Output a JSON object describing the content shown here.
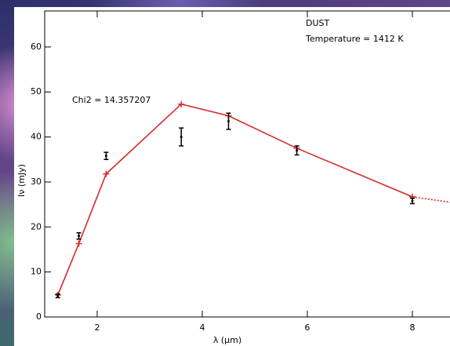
{
  "chart_data": {
    "type": "line",
    "annotations": [
      "DUST",
      "Temperature = 1412 K",
      "Chi2 = 14.357207"
    ],
    "xlabel": "λ (μm)",
    "ylabel": "Iν (mJy)",
    "xlim": [
      1,
      9
    ],
    "ylim": [
      0,
      68
    ],
    "xticks": [
      2,
      4,
      6,
      8
    ],
    "yticks": [
      0,
      10,
      20,
      30,
      40,
      50,
      60
    ],
    "series": [
      {
        "color": "#d42a2a",
        "linestyle": "solid",
        "marker": "+",
        "x": [
          1.25,
          1.65,
          2.17,
          3.6,
          4.5,
          5.8,
          8.0
        ],
        "values": [
          4.9,
          16.3,
          31.8,
          47.3,
          44.7,
          37.5,
          26.7
        ]
      },
      {
        "color": "#d42a2a",
        "linestyle": "dotted",
        "x": [
          8.0,
          8.72
        ],
        "values": [
          26.7,
          25.5
        ]
      },
      {
        "color": "#000000",
        "linestyle": "none",
        "marker": "dot",
        "x": [
          1.25,
          1.65,
          2.17,
          3.6,
          4.5,
          5.8,
          8.0
        ],
        "values": [
          4.7,
          18,
          35.8,
          40,
          43.5,
          37,
          25.8
        ],
        "errors": [
          0.4,
          0.7,
          0.8,
          2,
          1.8,
          1,
          0.6
        ]
      }
    ]
  }
}
